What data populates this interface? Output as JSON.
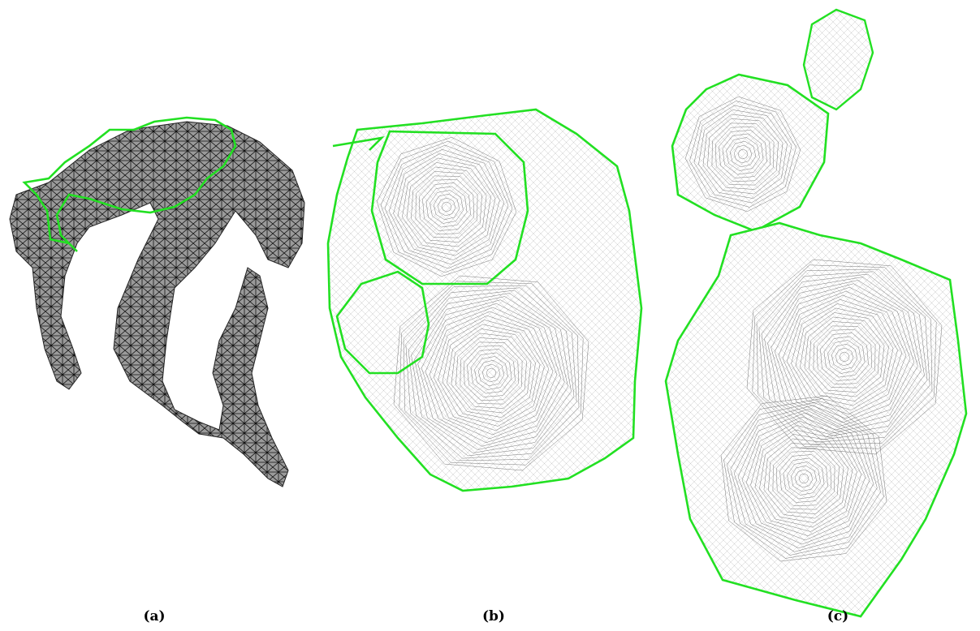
{
  "figure": {
    "panels": [
      {
        "caption": "(a)"
      },
      {
        "caption": "(b)"
      },
      {
        "caption": "(c)"
      }
    ]
  }
}
